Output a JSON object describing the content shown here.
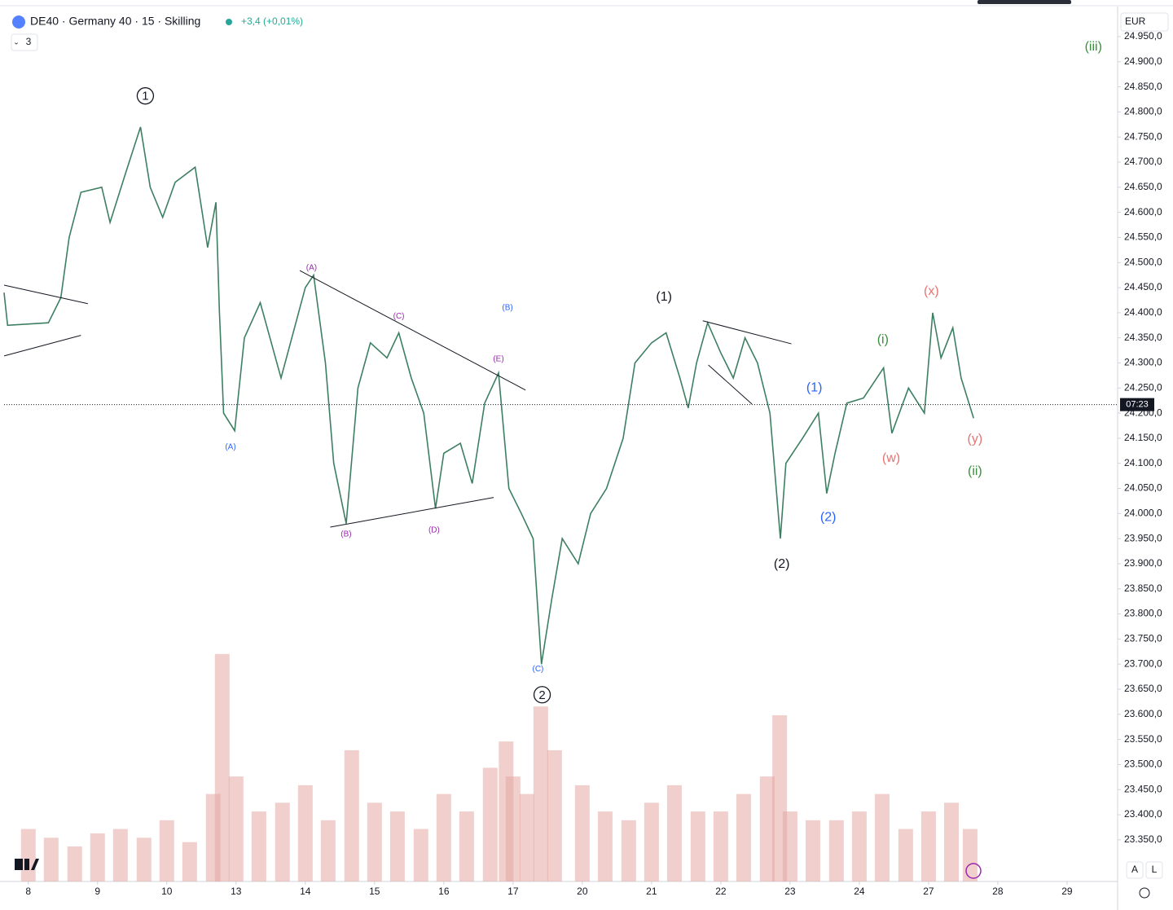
{
  "header": {
    "symbol": "DE40 · Germany 40 · 15 · Skilling",
    "change": "+3,4 (+0,01%)",
    "indicator_count": "3",
    "currency": "EUR",
    "auto_button": "A",
    "log_button": "L"
  },
  "chart_data": {
    "type": "line",
    "series": [
      {
        "name": "DE40",
        "color": "#3d7f62",
        "x": [
          -0.35,
          -0.3,
          0.29,
          0.47,
          0.59,
          0.76,
          1.06,
          1.18,
          1.41,
          1.62,
          1.76,
          1.94,
          2.12,
          2.41,
          2.59,
          2.71,
          2.76,
          2.82,
          2.98,
          3.12,
          3.35,
          3.65,
          4.0,
          4.12,
          4.29,
          4.41,
          4.59,
          4.76,
          4.94,
          5.18,
          5.35,
          5.53,
          5.71,
          5.88,
          6.0,
          6.24,
          6.41,
          6.59,
          6.79,
          6.94,
          7.12,
          7.29,
          7.41,
          7.56,
          7.71,
          7.94,
          8.12,
          8.35,
          8.59,
          8.76,
          9.0,
          9.21,
          9.41,
          9.53,
          9.65,
          9.81,
          10.0,
          10.18,
          10.35,
          10.53,
          10.71,
          10.86,
          10.94,
          11.18,
          11.41,
          11.53,
          11.65,
          11.82,
          12.06,
          12.35,
          12.47,
          12.71,
          12.94,
          13.06,
          13.18,
          13.35,
          13.47,
          13.65
        ],
        "values": [
          24440,
          24375,
          24380,
          24430,
          24550,
          24640,
          24650,
          24580,
          24680,
          24770,
          24650,
          24590,
          24660,
          24690,
          24530,
          24620,
          24400,
          24200,
          24165,
          24350,
          24420,
          24270,
          24450,
          24475,
          24300,
          24100,
          23980,
          24250,
          24340,
          24310,
          24360,
          24270,
          24200,
          24010,
          24120,
          24140,
          24060,
          24220,
          24280,
          24050,
          24000,
          23950,
          23700,
          23830,
          23950,
          23900,
          24000,
          24050,
          24150,
          24300,
          24340,
          24360,
          24270,
          24210,
          24300,
          24380,
          24320,
          24270,
          24350,
          24300,
          24200,
          23950,
          24100,
          24150,
          24200,
          24040,
          24120,
          24220,
          24230,
          24290,
          24160,
          24250,
          24200,
          24400,
          24310,
          24370,
          24270,
          24190
        ]
      },
      {
        "name": "Volume",
        "color": "#e4a7a2",
        "axis": "y2",
        "x": [
          0,
          0.33,
          0.67,
          1,
          1.33,
          1.67,
          2,
          2.33,
          2.67,
          2.8,
          3,
          3.33,
          3.67,
          4,
          4.33,
          4.67,
          5,
          5.33,
          5.67,
          6,
          6.33,
          6.67,
          6.9,
          7,
          7.2,
          7.4,
          7.6,
          8,
          8.33,
          8.67,
          9,
          9.33,
          9.67,
          10,
          10.33,
          10.67,
          10.85,
          11,
          11.33,
          11.67,
          12,
          12.33,
          12.67,
          13,
          13.33,
          13.6
        ],
        "values": [
          60,
          50,
          40,
          55,
          60,
          50,
          70,
          45,
          100,
          260,
          120,
          80,
          90,
          110,
          70,
          150,
          90,
          80,
          60,
          100,
          80,
          130,
          160,
          120,
          100,
          200,
          150,
          110,
          80,
          70,
          90,
          110,
          80,
          80,
          100,
          120,
          190,
          80,
          70,
          70,
          80,
          100,
          60,
          80,
          90,
          60
        ]
      }
    ],
    "xlim": [
      -0.35,
      15.73
    ],
    "xticks": [
      {
        "value": 0,
        "label": "8"
      },
      {
        "value": 1,
        "label": "9"
      },
      {
        "value": 2,
        "label": "10"
      },
      {
        "value": 3,
        "label": "13"
      },
      {
        "value": 4,
        "label": "14"
      },
      {
        "value": 5,
        "label": "15"
      },
      {
        "value": 6,
        "label": "16"
      },
      {
        "value": 7,
        "label": "17"
      },
      {
        "value": 8,
        "label": "20"
      },
      {
        "value": 9,
        "label": "21"
      },
      {
        "value": 10,
        "label": "22"
      },
      {
        "value": 11,
        "label": "23"
      },
      {
        "value": 12,
        "label": "24"
      },
      {
        "value": 13,
        "label": "27"
      },
      {
        "value": 14,
        "label": "28"
      },
      {
        "value": 15,
        "label": "29"
      }
    ],
    "ylim": [
      23267,
      25010
    ],
    "y2lim": [
      0,
      1000
    ],
    "yticks": [
      {
        "value": 24950,
        "label": "24.950,0"
      },
      {
        "value": 24900,
        "label": "24.900,0"
      },
      {
        "value": 24850,
        "label": "24.850,0"
      },
      {
        "value": 24800,
        "label": "24.800,0"
      },
      {
        "value": 24750,
        "label": "24.750,0"
      },
      {
        "value": 24700,
        "label": "24.700,0"
      },
      {
        "value": 24650,
        "label": "24.650,0"
      },
      {
        "value": 24600,
        "label": "24.600,0"
      },
      {
        "value": 24550,
        "label": "24.550,0"
      },
      {
        "value": 24500,
        "label": "24.500,0"
      },
      {
        "value": 24450,
        "label": "24.450,0"
      },
      {
        "value": 24400,
        "label": "24.400,0"
      },
      {
        "value": 24350,
        "label": "24.350,0"
      },
      {
        "value": 24300,
        "label": "24.300,0"
      },
      {
        "value": 24250,
        "label": "24.250,0"
      },
      {
        "value": 24200,
        "label": "24.200,0"
      },
      {
        "value": 24150,
        "label": "24.150,0"
      },
      {
        "value": 24100,
        "label": "24.100,0"
      },
      {
        "value": 24050,
        "label": "24.050,0"
      },
      {
        "value": 24000,
        "label": "24.000,0"
      },
      {
        "value": 23950,
        "label": "23.950,0"
      },
      {
        "value": 23900,
        "label": "23.900,0"
      },
      {
        "value": 23850,
        "label": "23.850,0"
      },
      {
        "value": 23800,
        "label": "23.800,0"
      },
      {
        "value": 23750,
        "label": "23.750,0"
      },
      {
        "value": 23700,
        "label": "23.700,0"
      },
      {
        "value": 23650,
        "label": "23.650,0"
      },
      {
        "value": 23600,
        "label": "23.600,0"
      },
      {
        "value": 23550,
        "label": "23.550,0"
      },
      {
        "value": 23500,
        "label": "23.500,0"
      },
      {
        "value": 23450,
        "label": "23.450,0"
      },
      {
        "value": 23400,
        "label": "23.400,0"
      },
      {
        "value": 23350,
        "label": "23.350,0"
      }
    ],
    "current_price": 24217,
    "countdown": "07:23",
    "trendlines": [
      {
        "x1": -0.35,
        "y1": 24455,
        "x2": 0.86,
        "y2": 24418
      },
      {
        "x1": -0.35,
        "y1": 24314,
        "x2": 0.76,
        "y2": 24355
      },
      {
        "x1": 3.92,
        "y1": 24484,
        "x2": 7.18,
        "y2": 24246
      },
      {
        "x1": 4.36,
        "y1": 23973,
        "x2": 6.72,
        "y2": 24032
      },
      {
        "x1": 9.74,
        "y1": 24384,
        "x2": 11.02,
        "y2": 24338
      },
      {
        "x1": 9.82,
        "y1": 24296,
        "x2": 10.45,
        "y2": 24218
      }
    ],
    "annotations": [
      {
        "text": "1",
        "x": 1.69,
        "y": 24832,
        "color": "#131722",
        "circled": true
      },
      {
        "text": "2",
        "x": 7.42,
        "y": 23639,
        "color": "#131722",
        "circled": true
      },
      {
        "text": "(A)",
        "x": 4.09,
        "y": 24491,
        "color": "#9c27b0"
      },
      {
        "text": "(A)",
        "x": 2.92,
        "y": 24134,
        "color": "#2962ff"
      },
      {
        "text": "(B)",
        "x": 4.59,
        "y": 23960,
        "color": "#9c27b0"
      },
      {
        "text": "(C)",
        "x": 5.35,
        "y": 24394,
        "color": "#9c27b0"
      },
      {
        "text": "(D)",
        "x": 5.86,
        "y": 23968,
        "color": "#9c27b0"
      },
      {
        "text": "(E)",
        "x": 6.79,
        "y": 24309,
        "color": "#9c27b0"
      },
      {
        "text": "(B)",
        "x": 6.92,
        "y": 24411,
        "color": "#2962ff"
      },
      {
        "text": "(C)",
        "x": 7.36,
        "y": 23692,
        "color": "#2962ff"
      },
      {
        "text": "(1)",
        "x": 9.18,
        "y": 24433,
        "color": "#131722",
        "big": true
      },
      {
        "text": "(2)",
        "x": 10.88,
        "y": 23900,
        "color": "#131722",
        "big": true
      },
      {
        "text": "(1)",
        "x": 11.35,
        "y": 24252,
        "color": "#2962ff",
        "big": true
      },
      {
        "text": "(2)",
        "x": 11.55,
        "y": 23994,
        "color": "#2962ff",
        "big": true
      },
      {
        "text": "(i)",
        "x": 12.34,
        "y": 24347,
        "color": "#388e3c",
        "big": true
      },
      {
        "text": "(w)",
        "x": 12.46,
        "y": 24111,
        "color": "#e57373",
        "big": true
      },
      {
        "text": "(x)",
        "x": 13.04,
        "y": 24444,
        "color": "#e57373",
        "big": true
      },
      {
        "text": "(y)",
        "x": 13.67,
        "y": 24149,
        "color": "#e57373",
        "big": true
      },
      {
        "text": "(ii)",
        "x": 13.67,
        "y": 24085,
        "color": "#388e3c",
        "big": true
      },
      {
        "text": "(iii)",
        "x": 15.38,
        "y": 24931,
        "color": "#388e3c",
        "big": true
      }
    ]
  }
}
